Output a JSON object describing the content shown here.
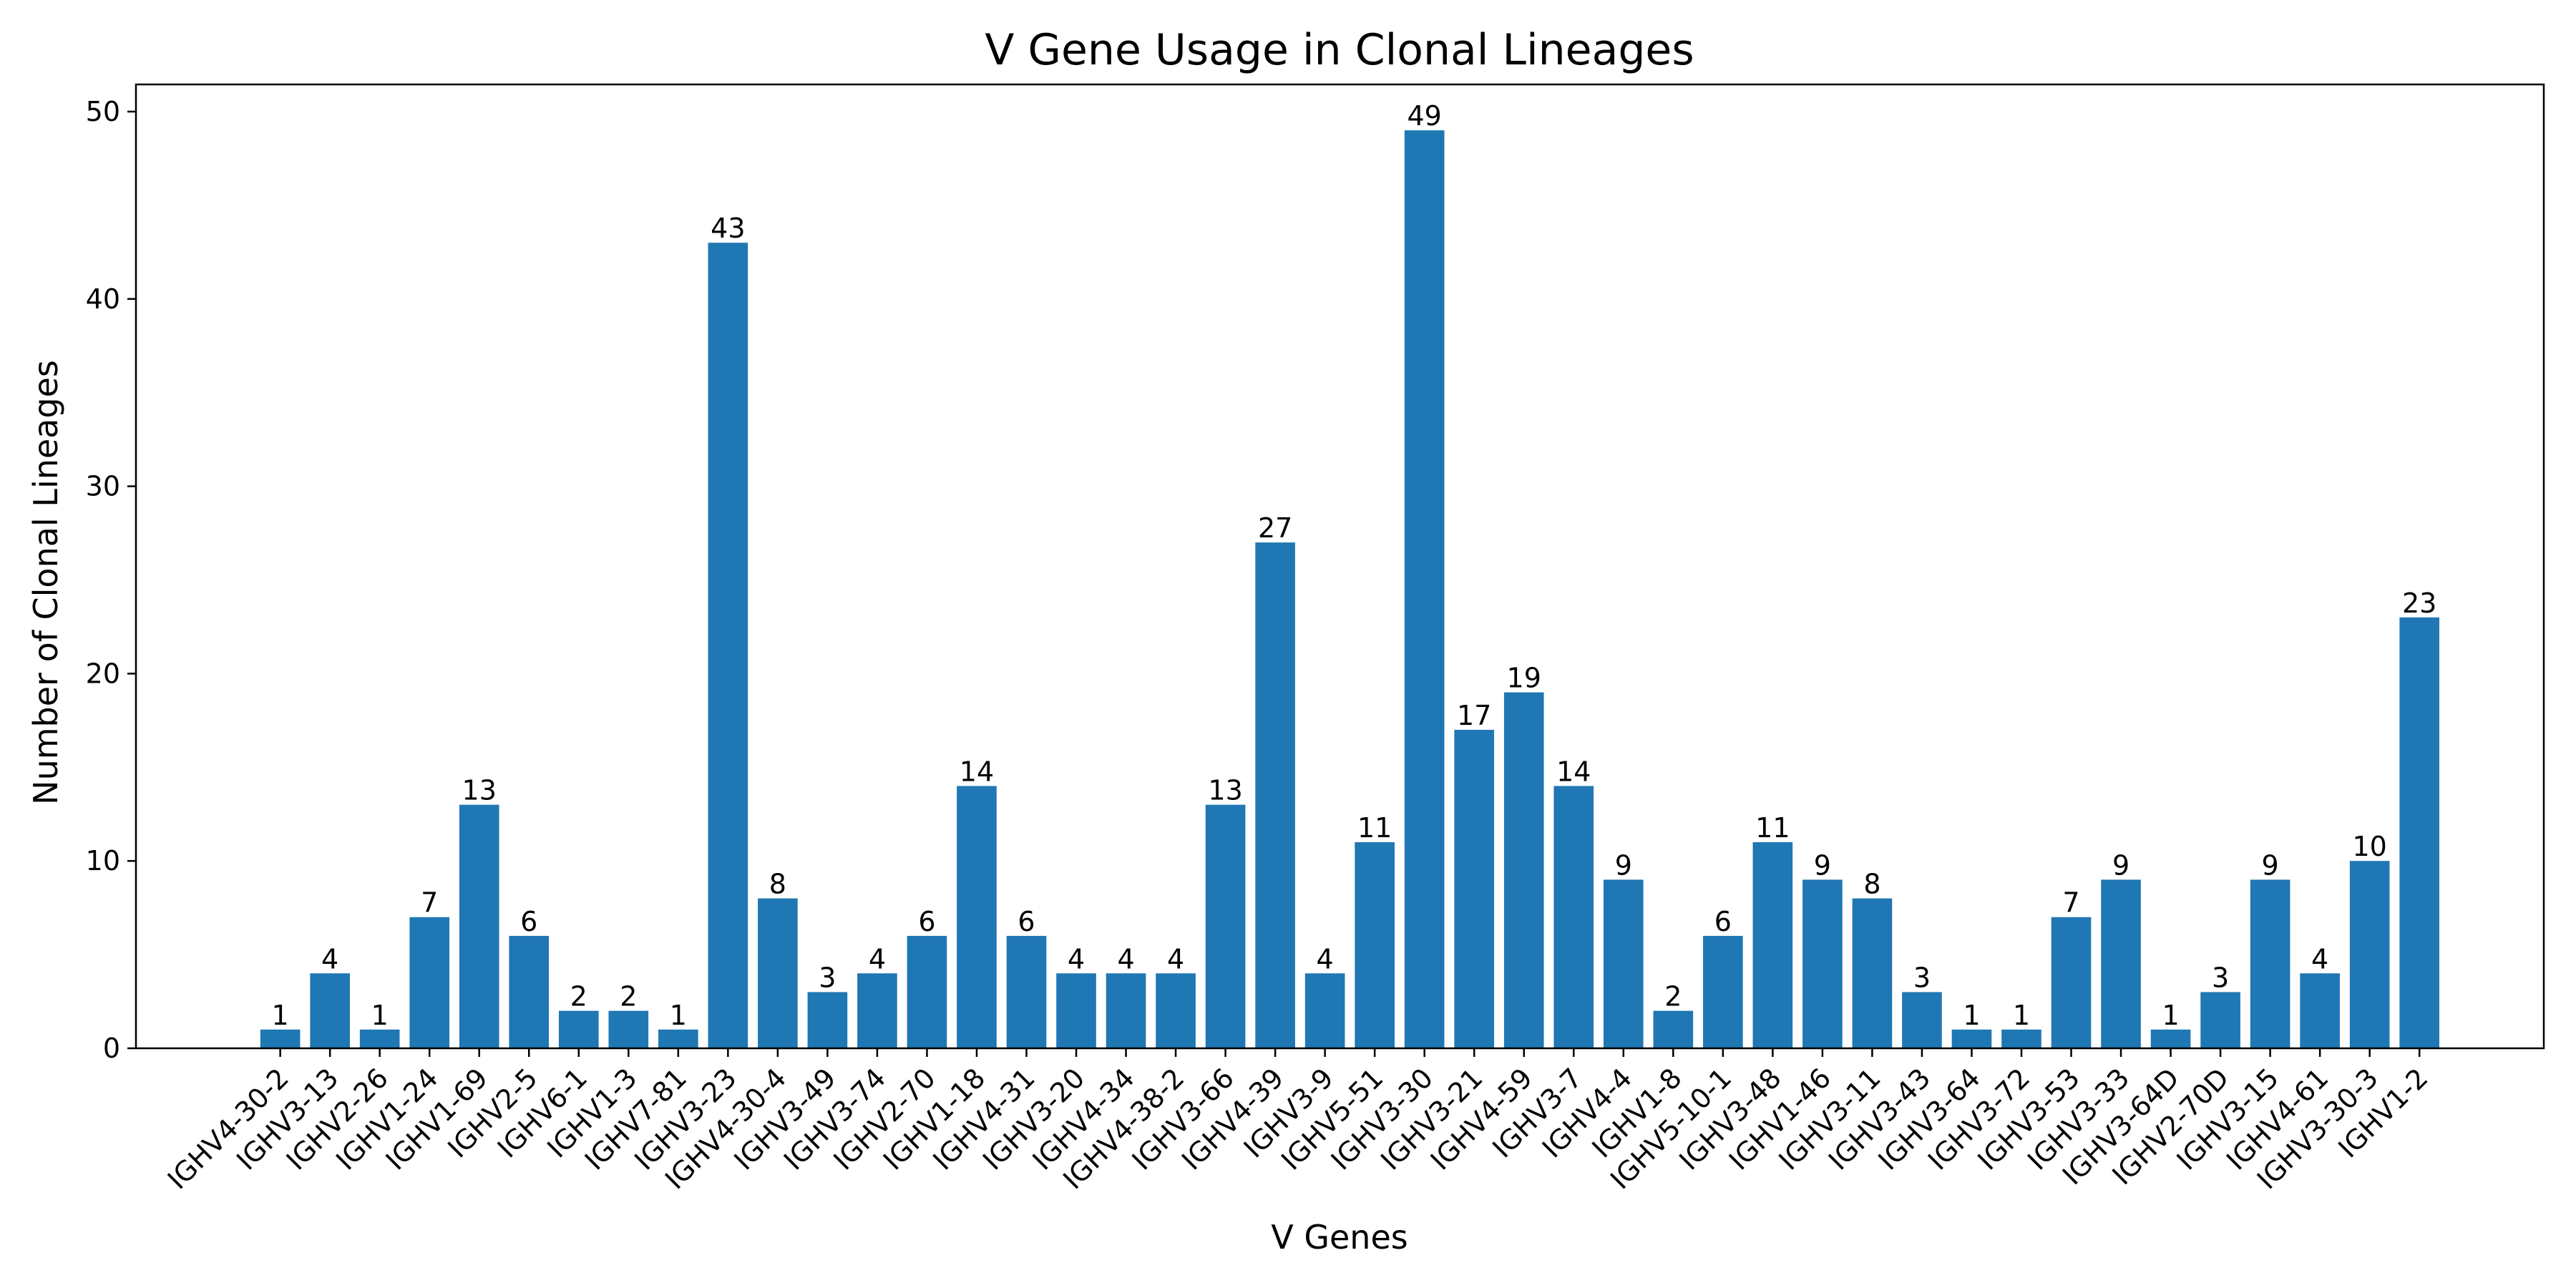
{
  "chart_data": {
    "type": "bar",
    "title": "V Gene Usage in Clonal Lineages",
    "xlabel": "V Genes",
    "ylabel": "Number of Clonal Lineages",
    "ylim": [
      0,
      51.45
    ],
    "yticks": [
      0,
      10,
      20,
      30,
      40,
      50
    ],
    "grid": false,
    "bar_color": "#1f77b4",
    "categories": [
      "IGHV4-30-2",
      "IGHV3-13",
      "IGHV2-26",
      "IGHV1-24",
      "IGHV1-69",
      "IGHV2-5",
      "IGHV6-1",
      "IGHV1-3",
      "IGHV7-81",
      "IGHV3-23",
      "IGHV4-30-4",
      "IGHV3-49",
      "IGHV3-74",
      "IGHV2-70",
      "IGHV1-18",
      "IGHV4-31",
      "IGHV3-20",
      "IGHV4-34",
      "IGHV4-38-2",
      "IGHV3-66",
      "IGHV4-39",
      "IGHV3-9",
      "IGHV5-51",
      "IGHV3-30",
      "IGHV3-21",
      "IGHV4-59",
      "IGHV3-7",
      "IGHV4-4",
      "IGHV1-8",
      "IGHV5-10-1",
      "IGHV3-48",
      "IGHV1-46",
      "IGHV3-11",
      "IGHV3-43",
      "IGHV3-64",
      "IGHV3-72",
      "IGHV3-53",
      "IGHV3-33",
      "IGHV3-64D",
      "IGHV2-70D",
      "IGHV3-15",
      "IGHV4-61",
      "IGHV3-30-3",
      "IGHV1-2"
    ],
    "values": [
      1,
      4,
      1,
      7,
      13,
      6,
      2,
      2,
      1,
      43,
      8,
      3,
      4,
      6,
      14,
      6,
      4,
      4,
      4,
      13,
      27,
      4,
      11,
      49,
      17,
      19,
      14,
      9,
      2,
      6,
      11,
      9,
      8,
      3,
      1,
      1,
      7,
      9,
      1,
      3,
      9,
      4,
      10,
      23
    ]
  }
}
